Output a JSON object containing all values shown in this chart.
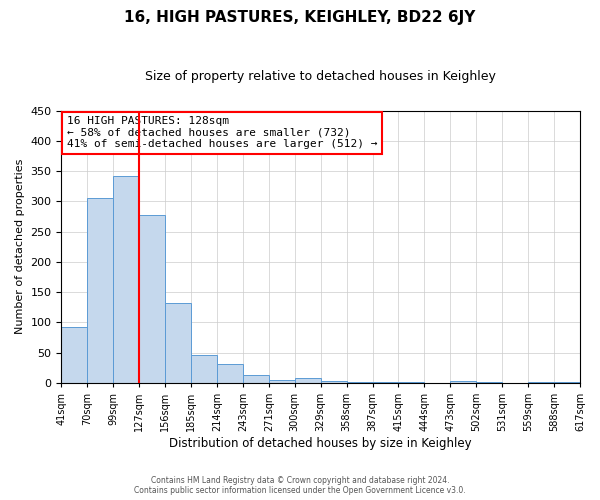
{
  "title": "16, HIGH PASTURES, KEIGHLEY, BD22 6JY",
  "subtitle": "Size of property relative to detached houses in Keighley",
  "xlabel": "Distribution of detached houses by size in Keighley",
  "ylabel": "Number of detached properties",
  "bin_edges": [
    41,
    70,
    99,
    128,
    157,
    186,
    215,
    244,
    273,
    302,
    331,
    360,
    389,
    418,
    447,
    476,
    505,
    534,
    563,
    592,
    621
  ],
  "bin_labels": [
    "41sqm",
    "70sqm",
    "99sqm",
    "127sqm",
    "156sqm",
    "185sqm",
    "214sqm",
    "243sqm",
    "271sqm",
    "300sqm",
    "329sqm",
    "358sqm",
    "387sqm",
    "415sqm",
    "444sqm",
    "473sqm",
    "502sqm",
    "531sqm",
    "559sqm",
    "588sqm",
    "617sqm"
  ],
  "bar_heights": [
    93,
    305,
    342,
    278,
    132,
    47,
    31,
    13,
    5,
    8,
    4,
    2,
    2,
    2,
    0,
    4,
    1,
    0,
    1,
    2
  ],
  "bar_color": "#c5d8ed",
  "bar_edgecolor": "#5b9bd5",
  "vline_x": 128,
  "vline_color": "red",
  "ylim": [
    0,
    450
  ],
  "yticks": [
    0,
    50,
    100,
    150,
    200,
    250,
    300,
    350,
    400,
    450
  ],
  "annotation_title": "16 HIGH PASTURES: 128sqm",
  "annotation_line1": "← 58% of detached houses are smaller (732)",
  "annotation_line2": "41% of semi-detached houses are larger (512) →",
  "annotation_box_color": "white",
  "annotation_box_edgecolor": "red",
  "footer1": "Contains HM Land Registry data © Crown copyright and database right 2024.",
  "footer2": "Contains public sector information licensed under the Open Government Licence v3.0.",
  "background_color": "white",
  "grid_color": "#cccccc"
}
